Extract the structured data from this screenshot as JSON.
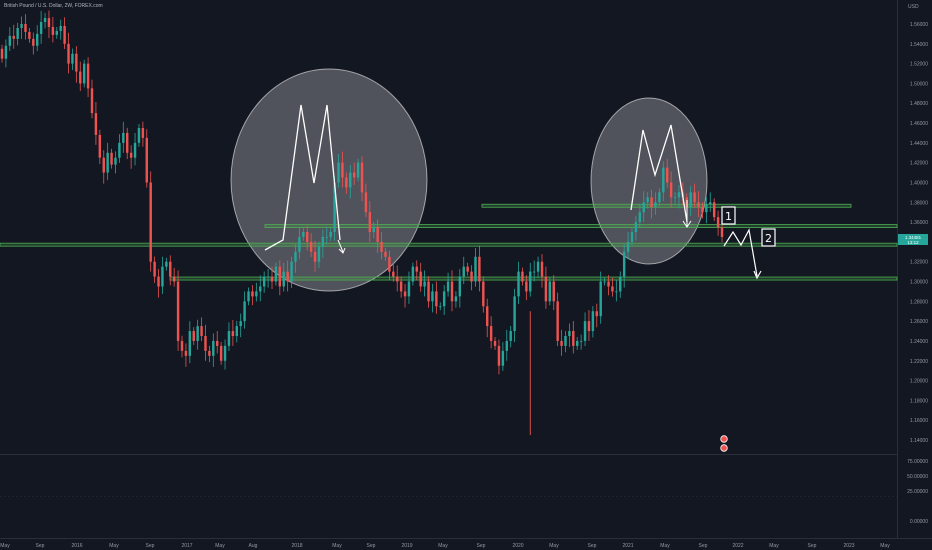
{
  "header": {
    "symbol_title": "British Pound / U.S. Dollar, 2W, FOREX.com"
  },
  "chart_data": {
    "type": "candlestick",
    "price_axis": {
      "currency_label": "USD",
      "ticks": [
        "1.56000",
        "1.54000",
        "1.52000",
        "1.50000",
        "1.48000",
        "1.46000",
        "1.44000",
        "1.42000",
        "1.40000",
        "1.38000",
        "1.36000",
        "1.34000",
        "1.32000",
        "1.30000",
        "1.28000",
        "1.26000",
        "1.24000",
        "1.22000",
        "1.20000",
        "1.18000",
        "1.16000",
        "1.14000"
      ],
      "ylim": [
        1.13,
        1.58
      ]
    },
    "indicator_axis": {
      "ticks": [
        "75.00000",
        "50.00000",
        "25.00000",
        "0.00000"
      ]
    },
    "x_axis": {
      "ticks": [
        "May",
        "Sep",
        "2016",
        "May",
        "Sep",
        "2017",
        "May",
        "Aug",
        "2018",
        "May",
        "Sep",
        "2019",
        "May",
        "Sep",
        "2020",
        "May",
        "Sep",
        "2021",
        "May",
        "Sep",
        "2022",
        "May",
        "Sep",
        "2023",
        "May"
      ]
    },
    "current_price": {
      "value": "1.34481",
      "countdown": "13:12"
    },
    "support_lines": [
      1.3765,
      1.356,
      1.3372,
      1.303
    ],
    "patterns": [
      {
        "type": "double-top (M)",
        "region": "2017-2018"
      },
      {
        "type": "double-top (M)",
        "region": "2021"
      }
    ],
    "annotations": [
      "1",
      "2"
    ],
    "colors": {
      "background": "#131722",
      "up": "#26a69a",
      "down": "#ef5350",
      "support_line": "#4caf50",
      "pattern_ellipse": "rgba(255,255,255,0.25)",
      "price_badge": "#26a69a"
    },
    "closes": [
      1.525,
      1.538,
      1.548,
      1.545,
      1.556,
      1.56,
      1.552,
      1.545,
      1.538,
      1.55,
      1.562,
      1.566,
      1.557,
      1.549,
      1.553,
      1.558,
      1.54,
      1.52,
      1.53,
      1.512,
      1.5,
      1.52,
      1.495,
      1.47,
      1.448,
      1.425,
      1.41,
      1.43,
      1.418,
      1.425,
      1.44,
      1.45,
      1.43,
      1.425,
      1.44,
      1.455,
      1.445,
      1.4,
      1.32,
      1.305,
      1.295,
      1.315,
      1.32,
      1.305,
      1.3,
      1.24,
      1.23,
      1.225,
      1.25,
      1.24,
      1.255,
      1.245,
      1.23,
      1.225,
      1.24,
      1.235,
      1.22,
      1.235,
      1.25,
      1.245,
      1.255,
      1.26,
      1.28,
      1.29,
      1.285,
      1.29,
      1.295,
      1.305,
      1.305,
      1.3,
      1.315,
      1.295,
      1.31,
      1.3,
      1.32,
      1.33,
      1.345,
      1.35,
      1.34,
      1.33,
      1.32,
      1.335,
      1.345,
      1.345,
      1.35,
      1.4,
      1.42,
      1.405,
      1.395,
      1.41,
      1.405,
      1.42,
      1.39,
      1.37,
      1.35,
      1.355,
      1.34,
      1.33,
      1.325,
      1.31,
      1.305,
      1.3,
      1.29,
      1.285,
      1.3,
      1.315,
      1.31,
      1.295,
      1.3,
      1.28,
      1.29,
      1.275,
      1.275,
      1.29,
      1.3,
      1.28,
      1.285,
      1.305,
      1.315,
      1.31,
      1.3,
      1.325,
      1.3,
      1.275,
      1.255,
      1.24,
      1.235,
      1.215,
      1.23,
      1.24,
      1.25,
      1.285,
      1.31,
      1.3,
      1.29,
      1.31,
      1.31,
      1.32,
      1.305,
      1.28,
      1.3,
      1.28,
      1.24,
      1.235,
      1.245,
      1.25,
      1.235,
      1.24,
      1.24,
      1.26,
      1.25,
      1.27,
      1.265,
      1.3,
      1.3,
      1.295,
      1.29,
      1.29,
      1.305,
      1.33,
      1.34,
      1.35,
      1.36,
      1.37,
      1.38,
      1.385,
      1.375,
      1.38,
      1.39,
      1.415,
      1.4,
      1.385,
      1.385,
      1.39,
      1.385,
      1.375,
      1.39,
      1.38,
      1.375,
      1.37,
      1.378,
      1.38,
      1.365,
      1.355,
      1.345
    ]
  }
}
